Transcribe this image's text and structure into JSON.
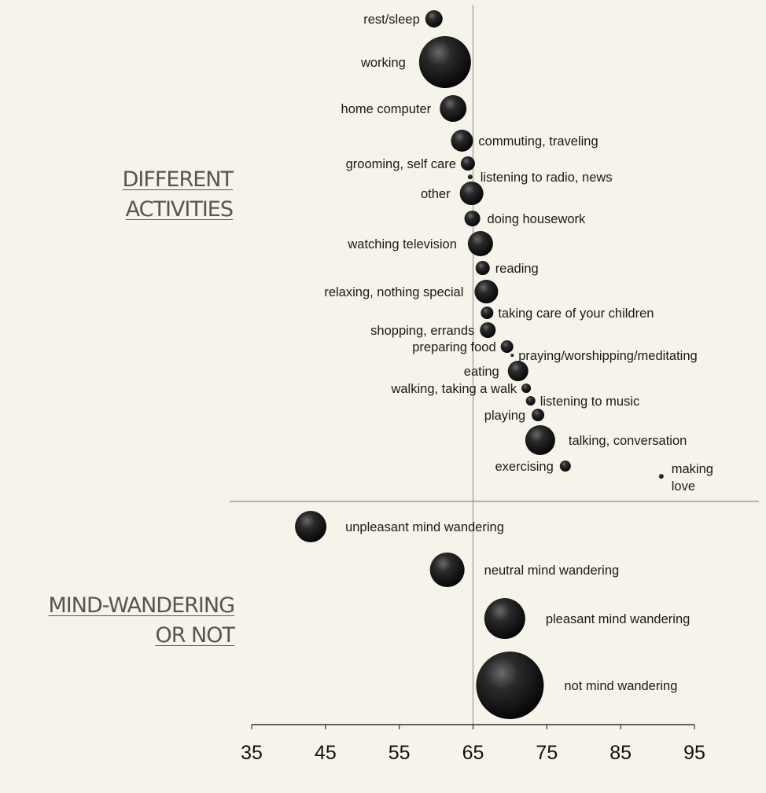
{
  "headings": {
    "activities": [
      "DIFFERENT",
      "ACTIVITIES"
    ],
    "mind_wandering": [
      "MIND-WANDERING",
      "OR NOT"
    ]
  },
  "chart_data": {
    "type": "scatter",
    "title": "",
    "xlabel": "",
    "ylabel": "",
    "xlim": [
      35,
      95
    ],
    "xticks": [
      35,
      45,
      55,
      65,
      75,
      85,
      95
    ],
    "reference_line_x": 65,
    "grid": false,
    "point_color": "#111111",
    "groups": [
      {
        "heading": "DIFFERENT ACTIVITIES",
        "points": [
          {
            "label": "rest/sleep",
            "x": 59.7,
            "size": 1.1
          },
          {
            "label": "working",
            "x": 61.2,
            "size": 3.3
          },
          {
            "label": "home computer",
            "x": 62.3,
            "size": 1.7
          },
          {
            "label": "commuting, traveling",
            "x": 63.5,
            "size": 1.4
          },
          {
            "label": "grooming, self care",
            "x": 64.3,
            "size": 0.9
          },
          {
            "label": "listening to radio, news",
            "x": 64.6,
            "size": 0.3
          },
          {
            "label": "other",
            "x": 64.8,
            "size": 1.5
          },
          {
            "label": "doing housework",
            "x": 64.9,
            "size": 1.0
          },
          {
            "label": "watching television",
            "x": 66.0,
            "size": 1.6
          },
          {
            "label": "reading",
            "x": 66.3,
            "size": 0.9
          },
          {
            "label": "relaxing, nothing special",
            "x": 66.8,
            "size": 1.5
          },
          {
            "label": "taking care of your children",
            "x": 66.9,
            "size": 0.8
          },
          {
            "label": "shopping, errands",
            "x": 67.0,
            "size": 1.0
          },
          {
            "label": "preparing food",
            "x": 69.6,
            "size": 0.8
          },
          {
            "label": "praying/worshipping/meditating",
            "x": 70.3,
            "size": 0.2
          },
          {
            "label": "eating",
            "x": 71.1,
            "size": 1.3
          },
          {
            "label": "walking, taking a walk",
            "x": 72.2,
            "size": 0.6
          },
          {
            "label": "listening to music",
            "x": 72.8,
            "size": 0.6
          },
          {
            "label": "playing",
            "x": 73.8,
            "size": 0.8
          },
          {
            "label": "talking, conversation",
            "x": 74.1,
            "size": 1.9
          },
          {
            "label": "exercising",
            "x": 77.5,
            "size": 0.7
          },
          {
            "label": "making love",
            "x": 90.5,
            "size": 0.3
          }
        ]
      },
      {
        "heading": "MIND-WANDERING OR NOT",
        "points": [
          {
            "label": "unpleasant mind wandering",
            "x": 43.0,
            "size": 2.0
          },
          {
            "label": "neutral mind wandering",
            "x": 61.5,
            "size": 2.2
          },
          {
            "label": "pleasant mind wandering",
            "x": 69.3,
            "size": 2.6
          },
          {
            "label": "not mind wandering",
            "x": 70.0,
            "size": 4.3
          }
        ]
      }
    ]
  }
}
